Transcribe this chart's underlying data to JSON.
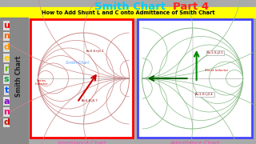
{
  "title": "Smith Chart ",
  "title_part2": "Part 4",
  "subtitle": "How to Add Shunt L and C onto Admittance of Smith Chart",
  "subtitle_bg": "#FFFF00",
  "title_color1": "#00CCFF",
  "title_color2": "#FF2222",
  "bg_color": "#AAAAAA",
  "left_chart_label": "Impedance Chart",
  "right_chart_label": "Admittance Chart",
  "left_box_color": "#FF0000",
  "right_box_color": "#4444FF",
  "chart_bg": "#FFFFFF",
  "left_annotation1": "B=0.6+j0.2",
  "left_annotation2": "A=0.8-j0.7",
  "left_label": "Series\nInductor",
  "right_annotation1": "B=1.0-j2.5",
  "right_annotation2": "A=1.0+j0.4",
  "right_label": "Shunt Inductor",
  "smith_text": "Smith Chart",
  "label_color": "#FF44BB",
  "understand_letters": [
    "u",
    "n",
    "d",
    "e",
    "r",
    "s",
    "t",
    "a",
    "n",
    "d"
  ],
  "understand_colors": [
    "#FF0000",
    "#FF6600",
    "#FF9900",
    "#FFCC00",
    "#66BB00",
    "#009933",
    "#0055FF",
    "#8800CC",
    "#FF0077",
    "#CC1100"
  ]
}
